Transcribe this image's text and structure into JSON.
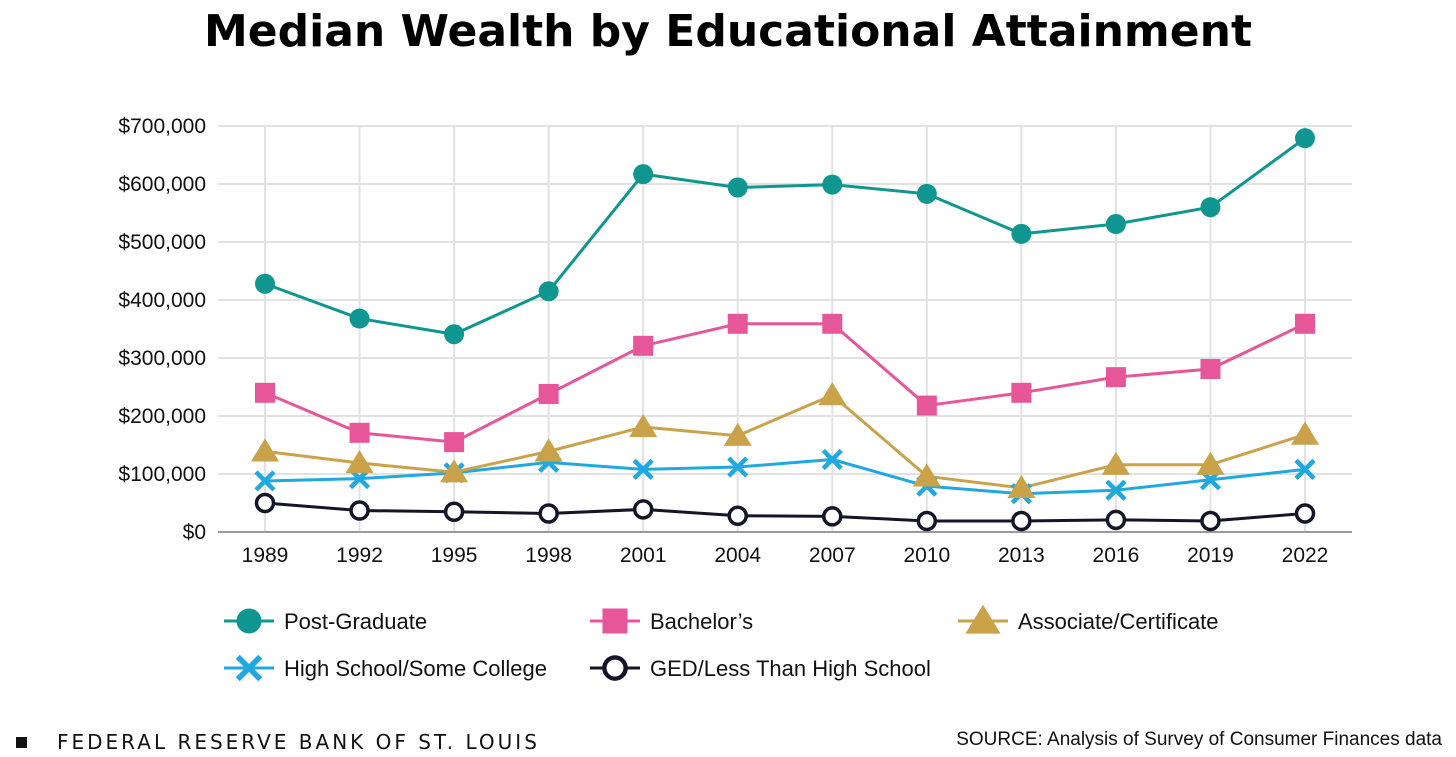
{
  "chart_data": {
    "type": "line",
    "title": "Median Wealth by Educational Attainment",
    "x": [
      "1989",
      "1992",
      "1995",
      "1998",
      "2001",
      "2004",
      "2007",
      "2010",
      "2013",
      "2016",
      "2019",
      "2022"
    ],
    "y_ticks": [
      "$0",
      "$100,000",
      "$200,000",
      "$300,000",
      "$400,000",
      "$500,000",
      "$600,000",
      "$700,000"
    ],
    "ylim": [
      0,
      700000
    ],
    "grid": true,
    "legend_position": "bottom",
    "series": [
      {
        "name": "Post-Graduate",
        "color": "#0f9690",
        "marker": "circle",
        "values": [
          428000,
          368000,
          341000,
          415000,
          617000,
          594000,
          599000,
          583000,
          514000,
          531000,
          560000,
          679000
        ]
      },
      {
        "name": "Bachelor’s",
        "color": "#e8569a",
        "marker": "square",
        "values": [
          240000,
          171000,
          155000,
          238000,
          321000,
          359000,
          359000,
          218000,
          240000,
          267000,
          281000,
          359000
        ]
      },
      {
        "name": "Associate/Certificate",
        "color": "#c9a24a",
        "marker": "triangle",
        "values": [
          139000,
          119000,
          103000,
          139000,
          181000,
          166000,
          236000,
          96000,
          76000,
          116000,
          116000,
          168000
        ]
      },
      {
        "name": "High School/Some College",
        "color": "#20a8e0",
        "marker": "x",
        "values": [
          88000,
          92000,
          102000,
          120000,
          108000,
          112000,
          125000,
          79000,
          66000,
          72000,
          90000,
          108000
        ]
      },
      {
        "name": "GED/Less Than High School",
        "color": "#151528",
        "marker": "open-circle",
        "values": [
          50000,
          37000,
          35000,
          32000,
          39000,
          28000,
          27000,
          19000,
          19000,
          21000,
          19000,
          32000
        ]
      }
    ]
  },
  "footer": {
    "organization": "FEDERAL RESERVE BANK OF ST. LOUIS",
    "source": "SOURCE: Analysis of Survey of Consumer Finances data"
  }
}
